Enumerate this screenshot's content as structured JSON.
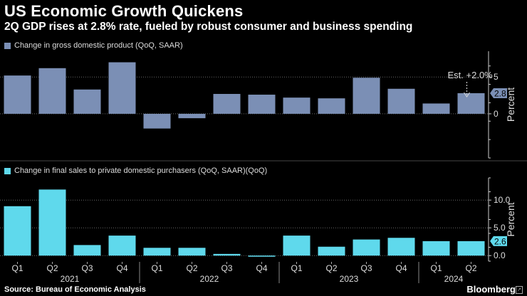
{
  "title": "US Economic Growth Quickens",
  "subtitle": "2Q GDP rises at 2.8% rate, fueled by robust consumer and business spending",
  "source": "Source: Bureau of Economic Analysis",
  "brand": "Bloomberg",
  "colors": {
    "top": "#7b8fb5",
    "bottom": "#5fd9ec",
    "axis": "#cccccc",
    "grid": "#666666"
  },
  "chart_data": [
    {
      "type": "bar",
      "legend": "Change in gross domestic product (QoQ, SAAR)",
      "ylabel": "Percent",
      "ylim": [
        -6,
        8.5
      ],
      "yticks": [
        "0",
        "5"
      ],
      "ytick_values": [
        0,
        5
      ],
      "value_badge": "2.8",
      "annotation": "Est. +2.0%",
      "categories": [
        "Q1 2021",
        "Q2 2021",
        "Q3 2021",
        "Q4 2021",
        "Q1 2022",
        "Q2 2022",
        "Q3 2022",
        "Q4 2022",
        "Q1 2023",
        "Q2 2023",
        "Q3 2023",
        "Q4 2023",
        "Q1 2024",
        "Q2 2024"
      ],
      "values": [
        5.2,
        6.2,
        3.3,
        7.0,
        -2.0,
        -0.6,
        2.7,
        2.6,
        2.2,
        2.1,
        4.9,
        3.4,
        1.4,
        2.8
      ]
    },
    {
      "type": "bar",
      "legend": "Change in final sales to private domestic purchasers (QoQ, SAAR)(QoQ)",
      "ylabel": "Percent",
      "ylim": [
        -1,
        14
      ],
      "yticks": [
        "0.0",
        "5.0",
        "10.0"
      ],
      "ytick_values": [
        0,
        5,
        10
      ],
      "value_badge": "2.6",
      "categories": [
        "Q1 2021",
        "Q2 2021",
        "Q3 2021",
        "Q4 2021",
        "Q1 2022",
        "Q2 2022",
        "Q3 2022",
        "Q4 2022",
        "Q1 2023",
        "Q2 2023",
        "Q3 2023",
        "Q4 2023",
        "Q1 2024",
        "Q2 2024"
      ],
      "values": [
        8.9,
        11.9,
        1.9,
        3.6,
        1.4,
        1.4,
        0.3,
        -0.2,
        3.6,
        1.6,
        2.9,
        3.2,
        2.6,
        2.6
      ]
    }
  ],
  "x_quarters": [
    "Q1",
    "Q2",
    "Q3",
    "Q4",
    "Q1",
    "Q2",
    "Q3",
    "Q4",
    "Q1",
    "Q2",
    "Q3",
    "Q4",
    "Q1",
    "Q2"
  ],
  "x_years": [
    "2021",
    "2022",
    "2023",
    "2024"
  ]
}
